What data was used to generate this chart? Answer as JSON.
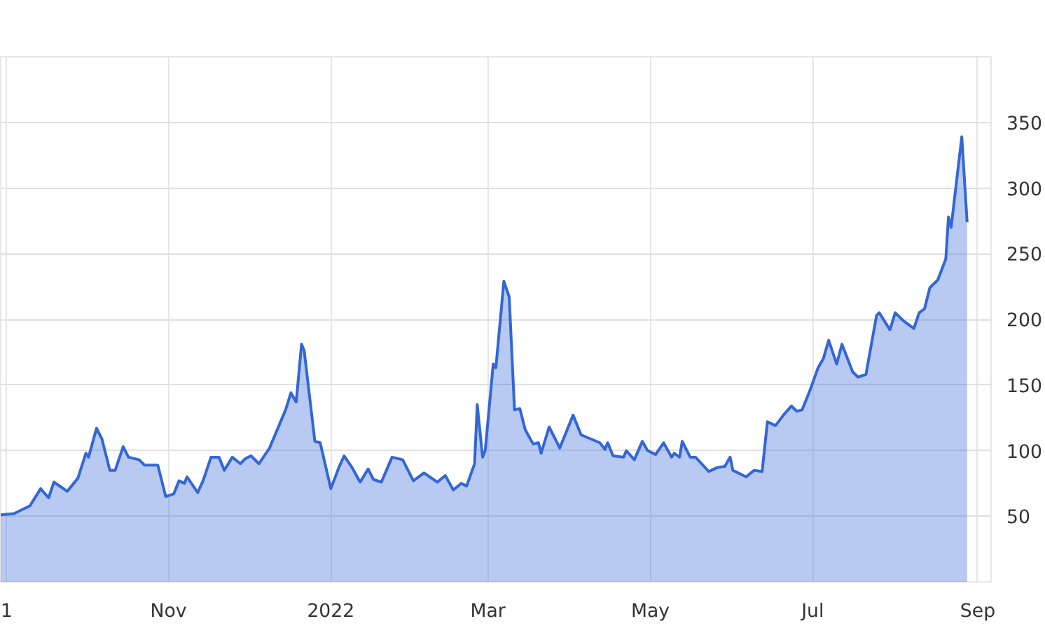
{
  "chart_data": {
    "type": "area",
    "x": [
      "2021-08-30",
      "2021-09-04",
      "2021-09-10",
      "2021-09-14",
      "2021-09-17",
      "2021-09-19",
      "2021-09-24",
      "2021-09-28",
      "2021-10-01",
      "2021-10-02",
      "2021-10-05",
      "2021-10-07",
      "2021-10-10",
      "2021-10-12",
      "2021-10-15",
      "2021-10-17",
      "2021-10-21",
      "2021-10-23",
      "2021-10-28",
      "2021-10-31",
      "2021-11-03",
      "2021-11-05",
      "2021-11-07",
      "2021-11-08",
      "2021-11-12",
      "2021-11-14",
      "2021-11-17",
      "2021-11-20",
      "2021-11-22",
      "2021-11-25",
      "2021-11-28",
      "2021-11-30",
      "2021-12-02",
      "2021-12-05",
      "2021-12-09",
      "2021-12-15",
      "2021-12-17",
      "2021-12-19",
      "2021-12-21",
      "2021-12-22",
      "2021-12-26",
      "2021-12-28",
      "2022-01-01",
      "2022-01-04",
      "2022-01-06",
      "2022-01-09",
      "2022-01-12",
      "2022-01-15",
      "2022-01-17",
      "2022-01-20",
      "2022-01-24",
      "2022-01-28",
      "2022-02-01",
      "2022-02-05",
      "2022-02-10",
      "2022-02-13",
      "2022-02-16",
      "2022-02-19",
      "2022-02-21",
      "2022-02-24",
      "2022-02-25",
      "2022-02-27",
      "2022-02-28",
      "2022-03-03",
      "2022-03-04",
      "2022-03-07",
      "2022-03-09",
      "2022-03-11",
      "2022-03-13",
      "2022-03-15",
      "2022-03-18",
      "2022-03-20",
      "2022-03-21",
      "2022-03-24",
      "2022-03-28",
      "2022-04-02",
      "2022-04-05",
      "2022-04-12",
      "2022-04-14",
      "2022-04-15",
      "2022-04-17",
      "2022-04-21",
      "2022-04-22",
      "2022-04-25",
      "2022-04-28",
      "2022-04-30",
      "2022-05-03",
      "2022-05-06",
      "2022-05-09",
      "2022-05-10",
      "2022-05-12",
      "2022-05-13",
      "2022-05-16",
      "2022-05-18",
      "2022-05-23",
      "2022-05-26",
      "2022-05-29",
      "2022-05-31",
      "2022-06-01",
      "2022-06-06",
      "2022-06-09",
      "2022-06-12",
      "2022-06-14",
      "2022-06-17",
      "2022-06-20",
      "2022-06-23",
      "2022-06-25",
      "2022-06-27",
      "2022-06-30",
      "2022-07-03",
      "2022-07-05",
      "2022-07-07",
      "2022-07-10",
      "2022-07-12",
      "2022-07-16",
      "2022-07-18",
      "2022-07-21",
      "2022-07-25",
      "2022-07-26",
      "2022-07-30",
      "2022-08-01",
      "2022-08-04",
      "2022-08-08",
      "2022-08-10",
      "2022-08-12",
      "2022-08-14",
      "2022-08-17",
      "2022-08-20",
      "2022-08-21",
      "2022-08-22",
      "2022-08-26",
      "2022-08-28"
    ],
    "series": [
      {
        "color": "#3366d6",
        "values": [
          51,
          52,
          58,
          71,
          64,
          76,
          69,
          79,
          98,
          95,
          117,
          109,
          85,
          85,
          103,
          95,
          93,
          89,
          89,
          65,
          67,
          77,
          75,
          80,
          68,
          77,
          95,
          95,
          85,
          95,
          90,
          94,
          96,
          90,
          102,
          131,
          144,
          137,
          181,
          176,
          107,
          106,
          71,
          87,
          96,
          87,
          76,
          86,
          78,
          76,
          95,
          93,
          77,
          83,
          76,
          81,
          70,
          75,
          73,
          90,
          135,
          95,
          100,
          166,
          163,
          229,
          217,
          131,
          132,
          116,
          105,
          106,
          98,
          118,
          102,
          127,
          112,
          106,
          101,
          106,
          96,
          95,
          100,
          93,
          107,
          100,
          97,
          106,
          95,
          98,
          95,
          107,
          95,
          95,
          84,
          87,
          88,
          95,
          85,
          80,
          85,
          84,
          122,
          119,
          127,
          134,
          130,
          131,
          146,
          163,
          170,
          184,
          166,
          181,
          160,
          156,
          158,
          203,
          205,
          192,
          205,
          199,
          193,
          205,
          208,
          224,
          230,
          246,
          278,
          270,
          339,
          274
        ]
      }
    ],
    "xlim": [
      "2021-08-30",
      "2022-09-06"
    ],
    "xticks": [
      {
        "value": "2021-09-01",
        "label": "1"
      },
      {
        "value": "2021-11-01",
        "label": "Nov"
      },
      {
        "value": "2022-01-01",
        "label": "2022"
      },
      {
        "value": "2022-03-01",
        "label": "Mar"
      },
      {
        "value": "2022-05-01",
        "label": "May"
      },
      {
        "value": "2022-07-01",
        "label": "Jul"
      },
      {
        "value": "2022-09-01",
        "label": "Sep"
      }
    ],
    "ylim": [
      0,
      400
    ],
    "yticks": [
      50,
      100,
      150,
      200,
      250,
      300,
      350
    ],
    "grid": true
  }
}
